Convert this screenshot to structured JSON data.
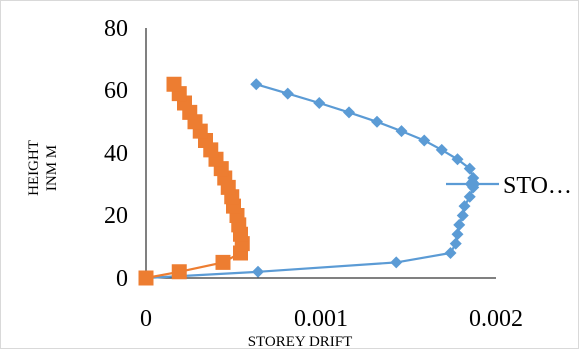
{
  "chart_data": {
    "type": "scatter",
    "title": "",
    "xlabel": "STOREY DRIFT",
    "ylabel_lines": [
      "HEIGHT",
      "INM M"
    ],
    "xlim": [
      0,
      0.002
    ],
    "ylim": [
      0,
      80
    ],
    "x_ticks": [
      "0",
      "0.001",
      "0.002"
    ],
    "y_ticks": [
      "0",
      "20",
      "40",
      "60",
      "80"
    ],
    "grid": false,
    "legend_position": "right",
    "legend_label": "STO…",
    "series": [
      {
        "color": "#5b9bd5",
        "marker": "diamond",
        "line": true,
        "points": [
          [
            0,
            0
          ],
          [
            0.00064,
            2
          ],
          [
            0.00143,
            5
          ],
          [
            0.00174,
            8
          ],
          [
            0.00177,
            11
          ],
          [
            0.00178,
            14
          ],
          [
            0.00179,
            17
          ],
          [
            0.00181,
            20
          ],
          [
            0.00182,
            23
          ],
          [
            0.00185,
            26
          ],
          [
            0.00187,
            29
          ],
          [
            0.00187,
            32
          ],
          [
            0.00185,
            35
          ],
          [
            0.00178,
            38
          ],
          [
            0.00169,
            41
          ],
          [
            0.00159,
            44
          ],
          [
            0.00146,
            47
          ],
          [
            0.00132,
            50
          ],
          [
            0.00116,
            53
          ],
          [
            0.00099,
            56
          ],
          [
            0.00081,
            59
          ],
          [
            0.00063,
            62
          ]
        ]
      },
      {
        "color": "#ed7d31",
        "marker": "square",
        "line": true,
        "points": [
          [
            0,
            0
          ],
          [
            0.00019,
            2
          ],
          [
            0.00044,
            5
          ],
          [
            0.00054,
            8
          ],
          [
            0.00055,
            11
          ],
          [
            0.00054,
            14
          ],
          [
            0.00053,
            17
          ],
          [
            0.00052,
            20
          ],
          [
            0.0005,
            23
          ],
          [
            0.00049,
            26
          ],
          [
            0.00047,
            29
          ],
          [
            0.00045,
            32
          ],
          [
            0.00043,
            35
          ],
          [
            0.0004,
            38
          ],
          [
            0.00037,
            41
          ],
          [
            0.00034,
            44
          ],
          [
            0.00031,
            47
          ],
          [
            0.00028,
            50
          ],
          [
            0.00025,
            53
          ],
          [
            0.00022,
            56
          ],
          [
            0.00019,
            59
          ],
          [
            0.00016,
            62
          ]
        ]
      }
    ]
  }
}
